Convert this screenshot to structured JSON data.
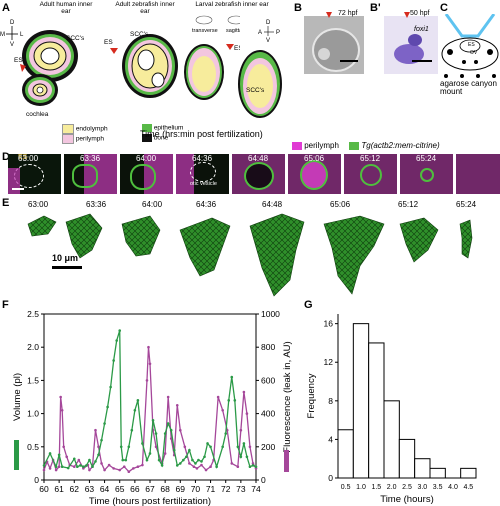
{
  "panels": {
    "A": "A",
    "B": "B",
    "B_prime": "B'",
    "C": "C",
    "D": "D",
    "E": "E",
    "F": "F",
    "G": "G"
  },
  "panelA": {
    "titles": [
      "Adult human inner ear",
      "Adult zebrafish inner ear",
      "Larval zebrafish inner ear"
    ],
    "labels": {
      "scc1": "SCC's",
      "scc2": "SCC's",
      "scc3": "SCC's",
      "es1": "ES",
      "es2": "ES",
      "es3": "ES",
      "cochlea": "cochlea",
      "transverse": "transverse",
      "sagittal": "sagittal"
    },
    "axes": {
      "dv_d": "D",
      "dv_v": "V",
      "ml_m": "M",
      "ml_l": "L",
      "ap_a": "A",
      "ap_p": "P",
      "dv2_d": "D",
      "dv2_v": "V"
    },
    "legend": [
      {
        "label": "endolymph",
        "color": "#f7ec9c"
      },
      {
        "label": "perilymph",
        "color": "#f3c6df"
      },
      {
        "label": "epithelium",
        "color": "#58b947"
      },
      {
        "label": "bone",
        "color": "#111111"
      }
    ]
  },
  "panelB": {
    "time": "72 hpf"
  },
  "panelBp": {
    "time": "50 hpf",
    "gene": "foxi1"
  },
  "panelC": {
    "labels": {
      "es": "ES",
      "ov": "OV"
    },
    "caption": "agarose canyon mount"
  },
  "panelD": {
    "title": "Time (hrs:min post fertilization)",
    "legend": [
      {
        "label": "perilymph",
        "color": "#e03ad3"
      },
      {
        "label": "Tg(actb2:mem-citrine)",
        "color": "#58b947"
      }
    ],
    "times": [
      "63:00",
      "63:36",
      "64:00",
      "64:36",
      "64:48",
      "65:06",
      "65:12",
      "65:24"
    ],
    "es_label": "ES",
    "vesicle_label": "otic vesicle"
  },
  "panelE": {
    "times": [
      "63:00",
      "63:36",
      "64:00",
      "64:36",
      "64:48",
      "65:06",
      "65:12",
      "65:24"
    ],
    "scale_label": "10 μm"
  },
  "chart_data": [
    {
      "type": "line",
      "title": "",
      "xlabel": "Time (hours post fertilization)",
      "ylabel": "Volume (pl)",
      "y2label": "Fluorescence (leak in, AU)",
      "xlim": [
        60,
        74
      ],
      "ylim": [
        0,
        2.5
      ],
      "y2lim": [
        0,
        1000
      ],
      "xticks": [
        60,
        61,
        62,
        63,
        64,
        65,
        66,
        67,
        68,
        69,
        70,
        71,
        72,
        73,
        74
      ],
      "yticks": [
        "0",
        "0.5",
        "1.0",
        "1.5",
        "2.0",
        "2.5"
      ],
      "y2ticks": [
        "0",
        "200",
        "400",
        "600",
        "800",
        "1000"
      ],
      "series": [
        {
          "name": "Volume",
          "color": "#2b9a47",
          "axis": "left",
          "x": [
            60.0,
            60.4,
            60.8,
            61.0,
            61.2,
            61.6,
            62.0,
            62.2,
            62.4,
            62.6,
            62.8,
            63.0,
            63.2,
            63.4,
            63.6,
            63.8,
            64.0,
            64.2,
            64.4,
            64.6,
            64.8,
            65.0,
            65.1,
            65.2,
            65.4,
            65.6,
            65.8,
            66.0,
            66.2,
            66.5,
            66.8,
            67.0,
            67.2,
            67.4,
            67.6,
            67.8,
            68.0,
            68.2,
            68.4,
            68.6,
            68.8,
            69.0,
            69.2,
            69.4,
            69.6,
            69.8,
            70.0,
            70.2,
            70.4,
            70.6,
            70.8,
            71.0,
            71.4,
            71.8,
            72.0,
            72.2,
            72.4,
            72.6,
            72.8,
            73.0,
            73.2,
            73.4,
            73.6,
            73.8,
            74.0
          ],
          "values": [
            0.22,
            0.4,
            0.2,
            0.38,
            0.2,
            0.18,
            0.32,
            0.2,
            0.22,
            0.2,
            0.22,
            0.3,
            0.2,
            0.28,
            0.38,
            0.6,
            0.85,
            1.1,
            1.4,
            1.8,
            2.1,
            2.25,
            0.5,
            0.3,
            0.3,
            0.5,
            0.75,
            1.05,
            1.2,
            0.55,
            0.3,
            0.4,
            0.9,
            0.7,
            0.3,
            0.22,
            0.7,
            0.85,
            0.75,
            0.45,
            0.22,
            0.25,
            0.3,
            0.35,
            0.45,
            0.3,
            0.25,
            0.3,
            0.28,
            0.35,
            0.55,
            0.5,
            0.2,
            0.5,
            0.7,
            1.2,
            1.55,
            1.2,
            0.5,
            0.35,
            0.55,
            0.35,
            0.2,
            0.22,
            0.2
          ]
        },
        {
          "name": "Fluorescence",
          "color": "#a5479a",
          "axis": "right",
          "x": [
            60.0,
            60.2,
            60.4,
            60.6,
            60.8,
            61.0,
            61.1,
            61.2,
            61.3,
            61.5,
            61.7,
            62.0,
            62.3,
            62.6,
            62.9,
            63.0,
            63.2,
            63.4,
            63.6,
            63.8,
            64.0,
            64.3,
            64.6,
            65.0,
            65.3,
            65.6,
            65.9,
            66.2,
            66.5,
            66.8,
            66.9,
            67.0,
            67.2,
            67.4,
            67.8,
            68.0,
            68.2,
            68.4,
            68.6,
            68.8,
            69.0,
            69.3,
            69.6,
            69.9,
            70.1,
            70.4,
            70.7,
            71.0,
            71.2,
            71.5,
            71.8,
            72.1,
            72.4,
            72.8,
            73.0,
            73.2,
            73.4,
            73.6,
            73.8,
            74.0
          ],
          "values": [
            60,
            110,
            70,
            120,
            60,
            80,
            500,
            420,
            200,
            140,
            90,
            80,
            120,
            70,
            90,
            60,
            80,
            300,
            200,
            100,
            60,
            90,
            70,
            60,
            80,
            50,
            70,
            80,
            90,
            600,
            800,
            700,
            300,
            200,
            100,
            160,
            500,
            250,
            150,
            450,
            300,
            200,
            100,
            80,
            70,
            90,
            60,
            80,
            120,
            500,
            420,
            300,
            100,
            80,
            300,
            530,
            400,
            200,
            100,
            70
          ]
        }
      ]
    },
    {
      "type": "bar",
      "title": "",
      "xlabel": "Time (hours)",
      "ylabel": "Frequency",
      "categories": [
        "0.5",
        "1.0",
        "1.5",
        "2.0",
        "2.5",
        "3.0",
        "3.5",
        "4.0",
        "4.5"
      ],
      "values": [
        5,
        16,
        14,
        8,
        4,
        2,
        1,
        0,
        1
      ],
      "ylim": [
        0,
        17
      ],
      "yticks": [
        "0",
        "4",
        "8",
        "12",
        "16"
      ]
    }
  ]
}
